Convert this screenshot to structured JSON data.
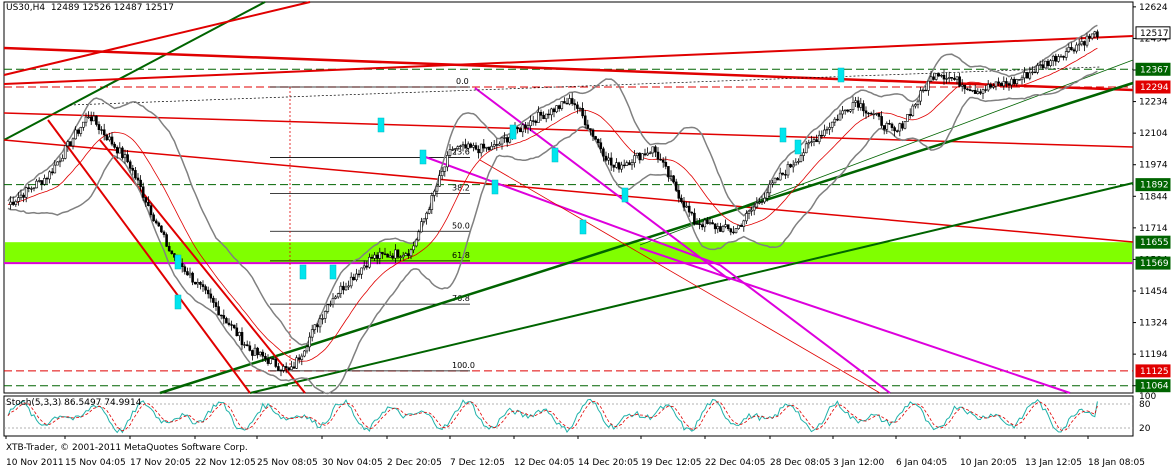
{
  "header": {
    "symbol_line": "US30,H4  12489 12526 12487 12517"
  },
  "indicator": {
    "label": "Stoch(5,3,3) 86.5497 74.9914",
    "levels": [
      "80",
      "20"
    ],
    "axis_top": "100"
  },
  "footer": {
    "copyright": "XTB-Trader, © 2001-2011 MetaQuotes Software Corp."
  },
  "fib_labels": [
    "0.0",
    "23.6",
    "38.2",
    "50.0",
    "61.8",
    "76.8",
    "100.0"
  ],
  "colors": {
    "bullish_band": "#80ff00",
    "resistance": "#e00000",
    "support": "#006400",
    "channel": "#dd00dd",
    "bollinger": "#808080",
    "price_tag_red": "#e00000",
    "price_tag_green": "#006400",
    "highlight_box": "#00e5ee",
    "stoch_main": "#20b2aa",
    "stoch_signal": "#e00000"
  },
  "chart_data": {
    "type": "candlestick",
    "symbol": "US30",
    "timeframe": "H4",
    "ohlc_header": {
      "open": 12489,
      "high": 12526,
      "low": 12487,
      "close": 12517
    },
    "y_ticks": [
      12624,
      12494,
      12364,
      12234,
      12104,
      11974,
      11844,
      11714,
      11584,
      11454,
      11324,
      11194,
      11064
    ],
    "ylim": [
      11034,
      12644
    ],
    "x_ticks": [
      "10 Nov 2011",
      "15 Nov 04:05",
      "17 Nov 20:05",
      "22 Nov 12:05",
      "25 Nov 08:05",
      "30 Nov 04:05",
      "2 Dec 20:05",
      "7 Dec 12:05",
      "12 Dec 04:05",
      "14 Dec 20:05",
      "19 Dec 12:05",
      "22 Dec 04:05",
      "28 Dec 08:05",
      "3 Jan 12:00",
      "6 Jan 04:05",
      "10 Jan 20:05",
      "13 Jan 12:05",
      "18 Jan 08:05"
    ],
    "price_tags": [
      {
        "value": "12517",
        "style": "current"
      },
      {
        "value": "12367",
        "style": "green"
      },
      {
        "value": "12294",
        "style": "red"
      },
      {
        "value": "11892",
        "style": "green"
      },
      {
        "value": "11655",
        "style": "green"
      },
      {
        "value": "11569",
        "style": "green"
      },
      {
        "value": "11125",
        "style": "red"
      },
      {
        "value": "11064",
        "style": "green"
      }
    ],
    "fibonacci": [
      {
        "level": "0.0",
        "price": 12294
      },
      {
        "level": "23.6",
        "price": 12004
      },
      {
        "level": "38.2",
        "price": 11856
      },
      {
        "level": "50.0",
        "price": 11700
      },
      {
        "level": "61.8",
        "price": 11578
      },
      {
        "level": "76.8",
        "price": 11400
      },
      {
        "level": "100.0",
        "price": 11125
      }
    ],
    "close_path": [
      11810,
      11930,
      12180,
      11980,
      11620,
      11420,
      11210,
      11120,
      11420,
      11590,
      11620,
      12040,
      12040,
      12160,
      12240,
      11960,
      12040,
      11740,
      11700,
      11900,
      12080,
      12240,
      12100,
      12360,
      12280,
      12320,
      12420,
      12517
    ],
    "stochastic": {
      "main": 86.5497,
      "signal": 74.9914,
      "levels": [
        80,
        20
      ],
      "range": [
        0,
        100
      ]
    }
  }
}
